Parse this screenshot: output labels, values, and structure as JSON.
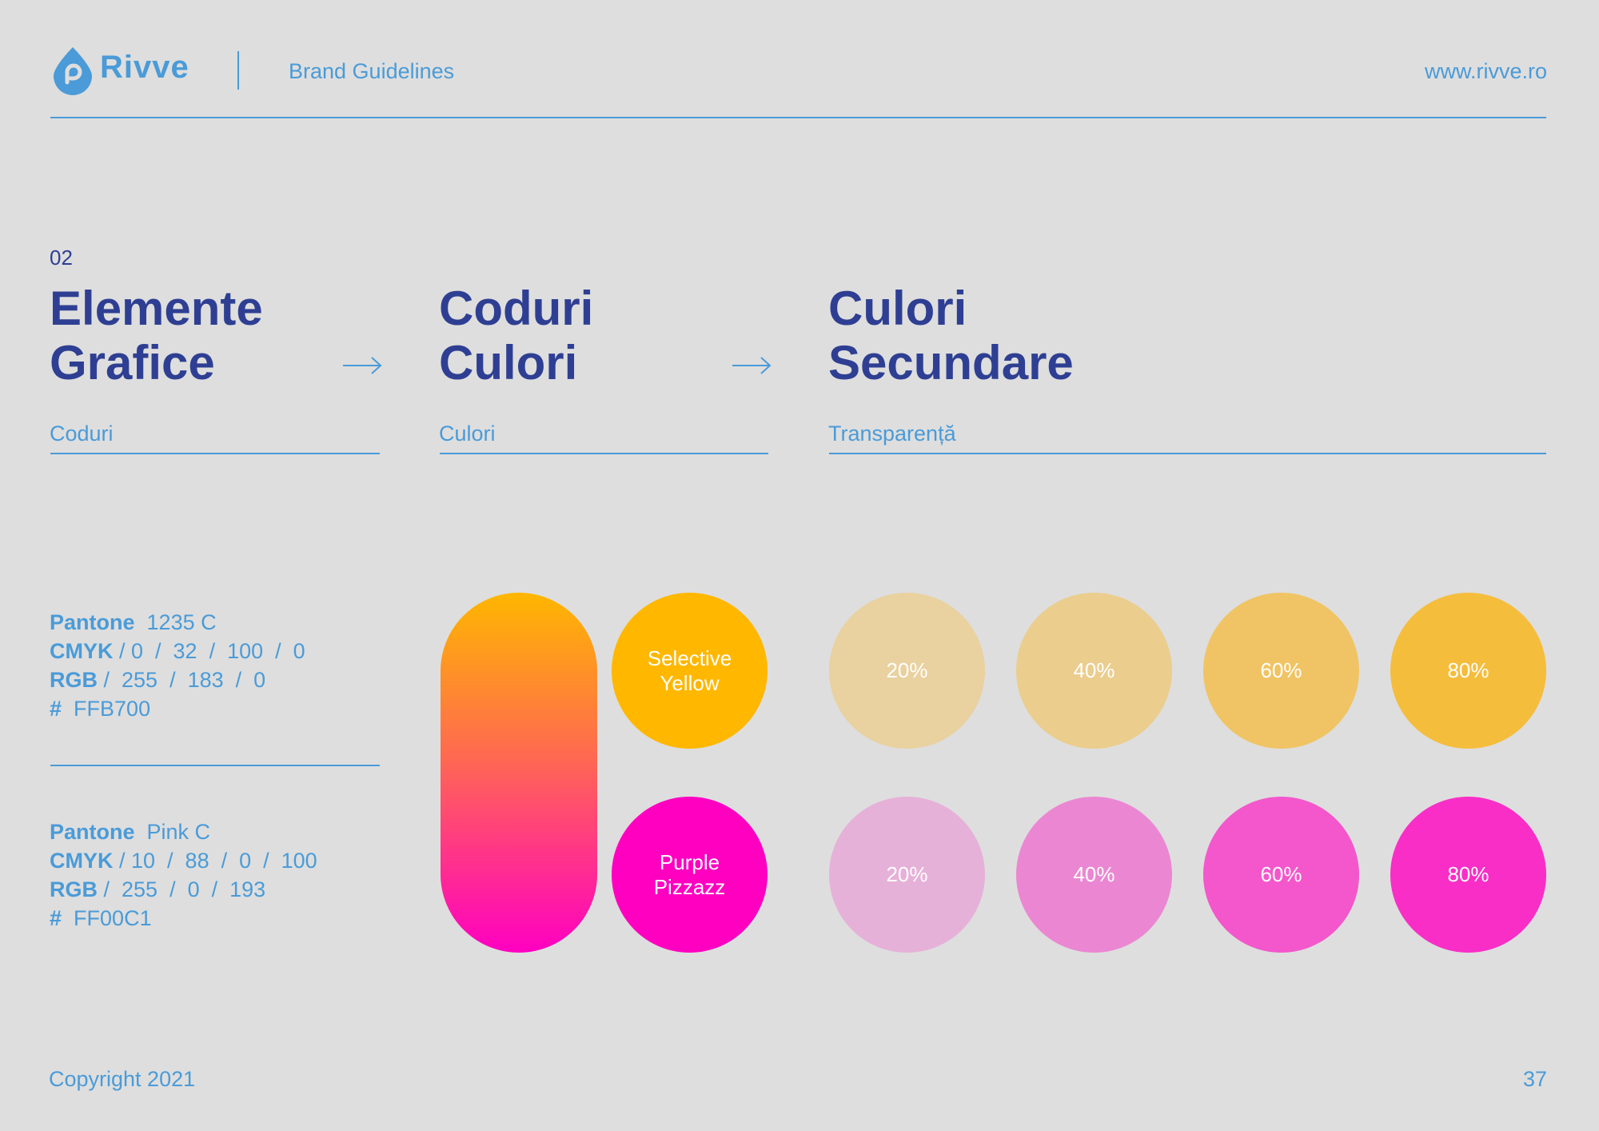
{
  "header": {
    "brand": "Rivve",
    "subtitle": "Brand Guidelines",
    "url": "www.rivve.ro",
    "accent_color": "#4A9BD8"
  },
  "section": {
    "number": "02",
    "columns": [
      {
        "title_line1": "Elemente",
        "title_line2": "Grafice",
        "subtitle": "Coduri"
      },
      {
        "title_line1": "Coduri",
        "title_line2": "Culori",
        "subtitle": "Culori"
      },
      {
        "title_line1": "Culori",
        "title_line2": "Secundare",
        "subtitle": "Transparență"
      }
    ],
    "title_color": "#2E3F93"
  },
  "specs": [
    {
      "pantone_label": "Pantone",
      "pantone_value": "1235 C",
      "cmyk_label": "CMYK",
      "cmyk_value": "/ 0  /  32  /  100  /  0",
      "rgb_label": "RGB",
      "rgb_value": "/  255  /  183  /  0",
      "hex_label": "#",
      "hex_value": "FFB700"
    },
    {
      "pantone_label": "Pantone",
      "pantone_value": "Pink C",
      "cmyk_label": "CMYK",
      "cmyk_value": "/ 10  /  88  /  0  /  100",
      "rgb_label": "RGB",
      "rgb_value": "/  255  /  0  /  193",
      "hex_label": "#",
      "hex_value": "FF00C1"
    }
  ],
  "swatches": {
    "gradient_from": "#FFB700",
    "gradient_to": "#FF00C1",
    "primary": [
      {
        "name": "Selective\nYellow",
        "color": "#FFB700"
      },
      {
        "name": "Purple\nPizzazz",
        "color": "#FF00C1"
      }
    ],
    "tints": [
      [
        {
          "label": "20%",
          "color": "#E9D1A0"
        },
        {
          "label": "40%",
          "color": "#EBCD8D"
        },
        {
          "label": "60%",
          "color": "#F0C464"
        },
        {
          "label": "80%",
          "color": "#F5BD3C"
        }
      ],
      [
        {
          "label": "20%",
          "color": "#E6B1D8"
        },
        {
          "label": "40%",
          "color": "#EB87D2"
        },
        {
          "label": "60%",
          "color": "#F357CB"
        },
        {
          "label": "80%",
          "color": "#F92EC6"
        }
      ]
    ]
  },
  "footer": {
    "copyright": "Copyright 2021",
    "page_number": "37"
  }
}
